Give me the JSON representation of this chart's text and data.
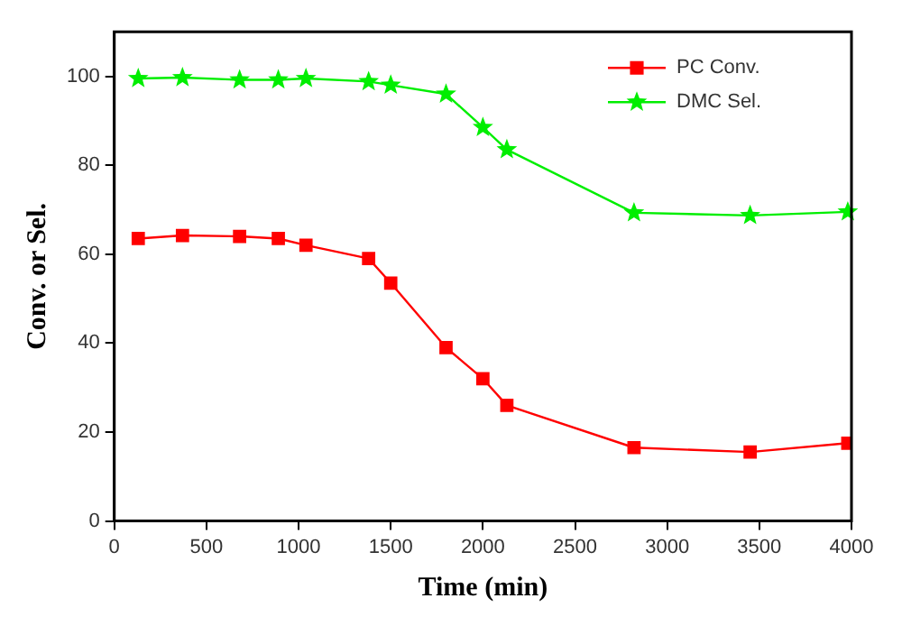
{
  "chart_data": {
    "type": "line",
    "xlabel": "Time (min)",
    "ylabel": "Conv. or Sel.",
    "xlim": [
      0,
      4000
    ],
    "xticks": [
      0,
      500,
      1000,
      1500,
      2000,
      2500,
      3000,
      3500,
      4000
    ],
    "ylim": [
      0,
      110
    ],
    "yticks": [
      0,
      20,
      40,
      60,
      80,
      100
    ],
    "grid": false,
    "legend": "top right",
    "line_style": "solid",
    "series": [
      {
        "name": "PC Conv.",
        "color": "#ff0000",
        "marker": "square",
        "x": [
          130,
          370,
          680,
          890,
          1040,
          1380,
          1500,
          1800,
          2000,
          2130,
          2820,
          3450,
          3980
        ],
        "values": [
          63.5,
          64.2,
          64,
          63.5,
          62,
          59,
          53.5,
          39,
          32,
          26,
          16.5,
          15.5,
          17.5
        ]
      },
      {
        "name": "DMC Sel.",
        "color": "#00ee00",
        "marker": "star",
        "x": [
          130,
          370,
          680,
          890,
          1040,
          1380,
          1500,
          1800,
          2000,
          2130,
          2820,
          3450,
          3980
        ],
        "values": [
          99.5,
          99.7,
          99.2,
          99.2,
          99.5,
          98.8,
          98,
          96,
          88.5,
          83.5,
          69.3,
          68.7,
          69.5
        ]
      }
    ]
  }
}
